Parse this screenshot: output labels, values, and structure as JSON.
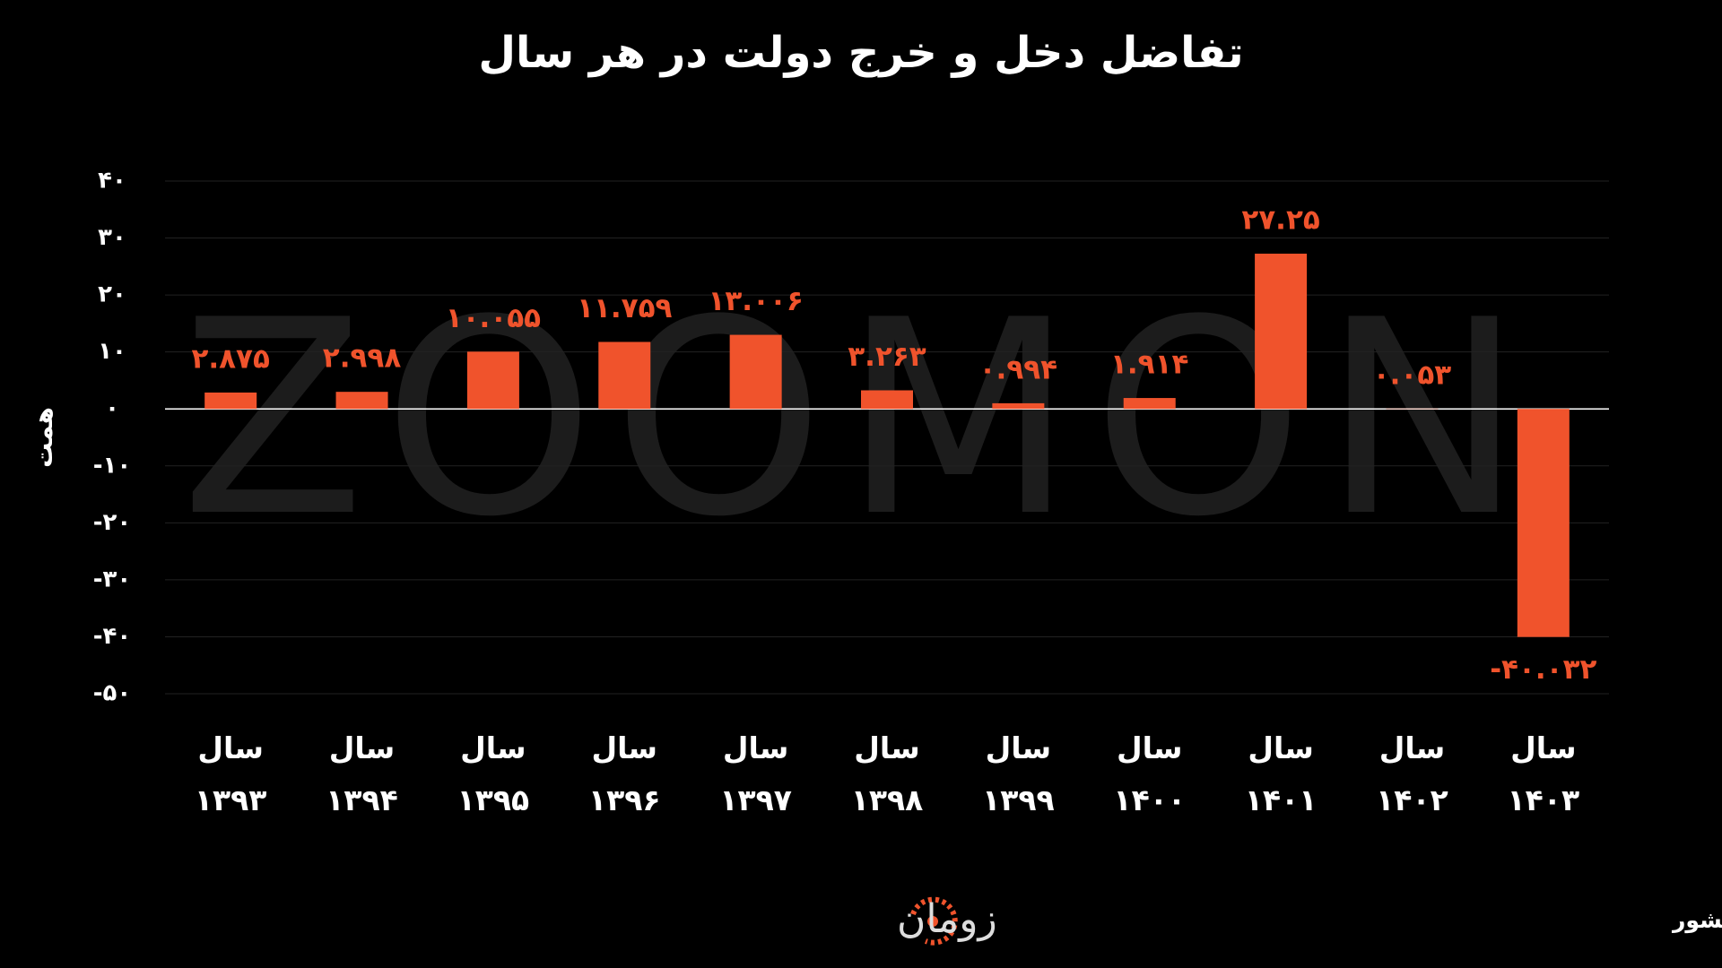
{
  "chart_data": {
    "type": "bar",
    "title": "تفاضل دخل و خرج دولت در هر سال",
    "y_label": "همت",
    "categories": [
      "سال ۱۳۹۳",
      "سال ۱۳۹۴",
      "سال ۱۳۹۵",
      "سال ۱۳۹۶",
      "سال ۱۳۹۷",
      "سال ۱۳۹۸",
      "سال ۱۳۹۹",
      "سال ۱۴۰۰",
      "سال ۱۴۰۱",
      "سال ۱۴۰۲",
      "سال ۱۴۰۳"
    ],
    "values": [
      2.875,
      2.998,
      10.055,
      11.759,
      13.006,
      3.263,
      0.994,
      1.914,
      27.25,
      0.053,
      -40.032
    ],
    "value_labels": [
      "۲.۸۷۵",
      "۲.۹۹۸",
      "۱۰.۰۵۵",
      "۱۱.۷۵۹",
      "۱۳.۰۰۶",
      "۳.۲۶۳",
      "۰.۹۹۴",
      "۱.۹۱۴",
      "۲۷.۲۵",
      "۰.۰۵۳",
      "-۴۰.۰۳۲"
    ],
    "color": "#f0532c",
    "ylim": [
      -50,
      40
    ],
    "yticks": [
      {
        "value": 40,
        "label": "۴۰"
      },
      {
        "value": 30,
        "label": "۳۰"
      },
      {
        "value": 20,
        "label": "۲۰"
      },
      {
        "value": 10,
        "label": "۱۰"
      },
      {
        "value": 0,
        "label": "۰"
      },
      {
        "value": -10,
        "label": "-۱۰"
      },
      {
        "value": -20,
        "label": "-۲۰"
      },
      {
        "value": -30,
        "label": "-۳۰"
      },
      {
        "value": -40,
        "label": "-۴۰"
      },
      {
        "value": -50,
        "label": "-۵۰"
      }
    ],
    "grid": true,
    "watermark": "ZOOMON",
    "source": "منبع: گزارش تفریغ بودجه دیوان محاسبات کشور",
    "logo": "زومان"
  }
}
